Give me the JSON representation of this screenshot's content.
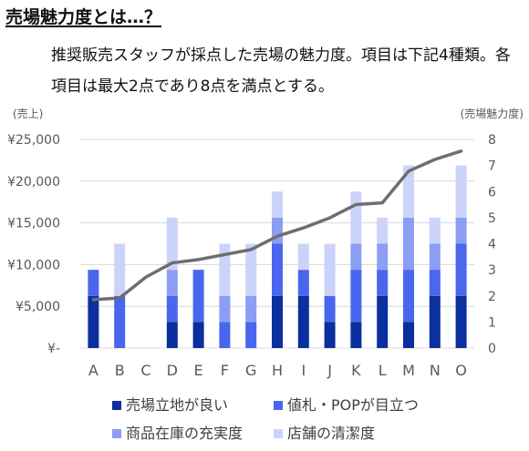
{
  "heading": "売場魅力度とは…？",
  "description": "推奨販売スタッフが採点した売場の魅力度。項目は下記4種類。各項目は最大2点であり8点を満点とする。",
  "colors": {
    "s1": "#0a2f9e",
    "s2": "#4a66ee",
    "s3": "#8c9ef3",
    "s4": "#ccd3fa",
    "line": "#6e6e6e",
    "grid": "#d9d9d9"
  },
  "chart_data": {
    "type": "bar+line",
    "categories": [
      "A",
      "B",
      "C",
      "D",
      "E",
      "F",
      "G",
      "H",
      "I",
      "J",
      "K",
      "L",
      "M",
      "N",
      "O"
    ],
    "series": [
      {
        "name": "売場立地が良い",
        "axis": "right",
        "values": [
          2,
          0,
          0,
          1,
          1,
          0,
          0,
          2,
          2,
          1,
          1,
          2,
          1,
          2,
          2
        ]
      },
      {
        "name": "値札・POPが目立つ",
        "axis": "right",
        "values": [
          1,
          2,
          0,
          1,
          2,
          1,
          1,
          2,
          1,
          1,
          2,
          1,
          2,
          1,
          2
        ]
      },
      {
        "name": "商品在庫の充実度",
        "axis": "right",
        "values": [
          0,
          0,
          0,
          1,
          0,
          1,
          1,
          1,
          0,
          0,
          1,
          1,
          2,
          1,
          1
        ]
      },
      {
        "name": "店舗の清潔度",
        "axis": "right",
        "values": [
          0,
          2,
          0,
          2,
          0,
          2,
          2,
          1,
          1,
          2,
          2,
          1,
          2,
          1,
          2
        ]
      }
    ],
    "line": {
      "axis": "left",
      "values": [
        5800,
        6000,
        8500,
        10200,
        10600,
        11200,
        11800,
        13400,
        14400,
        15600,
        17200,
        17400,
        21200,
        22600,
        23600
      ]
    },
    "left_axis": {
      "label": "(売上)",
      "min": 0,
      "max": 25000,
      "ticks": [
        "¥-",
        "¥5,000",
        "¥10,000",
        "¥15,000",
        "¥20,000",
        "¥25,000"
      ]
    },
    "right_axis": {
      "label": "(売場魅力度)",
      "min": 0,
      "max": 8,
      "ticks": [
        "0",
        "1",
        "2",
        "3",
        "4",
        "5",
        "6",
        "7",
        "8"
      ]
    },
    "grid": true,
    "legend_position": "bottom"
  }
}
